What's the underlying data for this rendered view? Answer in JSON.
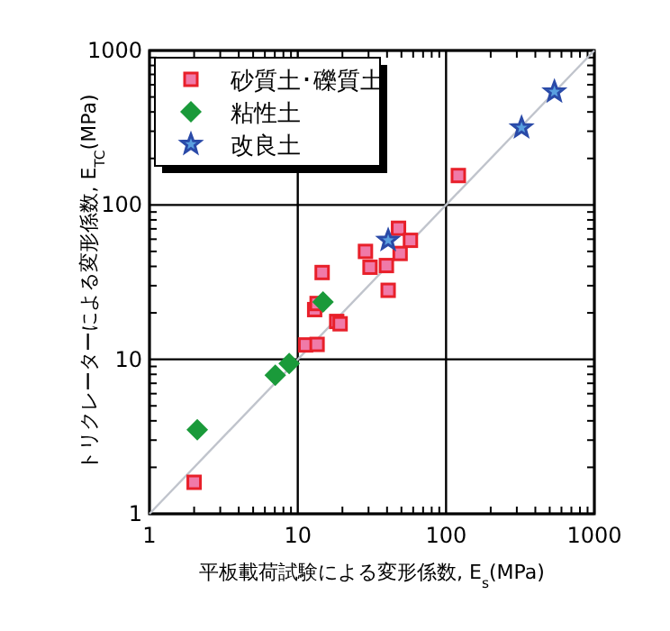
{
  "chart_data": {
    "type": "scatter",
    "xlabel": "平板載荷試験による変形係数, E$_{s}$(MPa)",
    "ylabel": "トリクレーターによる変形係数, E$_{TC}$(MPa)",
    "log": "xy",
    "xlim": [
      1,
      1000
    ],
    "ylim": [
      1,
      1000
    ],
    "xticks": [
      1,
      10,
      100,
      1000
    ],
    "yticks": [
      1,
      10,
      100,
      1000
    ],
    "grid": true,
    "legend": "top left",
    "series": [
      {
        "type": "line",
        "color": "#c0c4cc",
        "marker": "none",
        "x": [
          1,
          1000
        ],
        "values": [
          1,
          1000
        ]
      },
      {
        "name": "砂質土･礫質土",
        "color": "#f07aa8",
        "marker": "square",
        "x": [
          2.0,
          11.3,
          13.5,
          13,
          13.5,
          14.6,
          18.3,
          19.3,
          28.6,
          30.7,
          39.6,
          40.7,
          47.8,
          49,
          57.5,
          121
        ],
        "values": [
          1.6,
          12.4,
          12.5,
          21,
          23,
          36.5,
          17.6,
          17,
          50,
          39.5,
          40.5,
          28,
          70.6,
          48.5,
          59,
          155
        ]
      },
      {
        "name": "粘性土",
        "color": "#1a9a3a",
        "marker": "diamond",
        "x": [
          2.1,
          7.05,
          8.75,
          14.8
        ],
        "values": [
          3.5,
          7.9,
          9.4,
          23.5
        ]
      },
      {
        "name": "改良土",
        "color": "#2a4aa8",
        "marker": "star",
        "x": [
          40.7,
          323,
          538
        ],
        "values": [
          59,
          316,
          540
        ]
      }
    ]
  }
}
